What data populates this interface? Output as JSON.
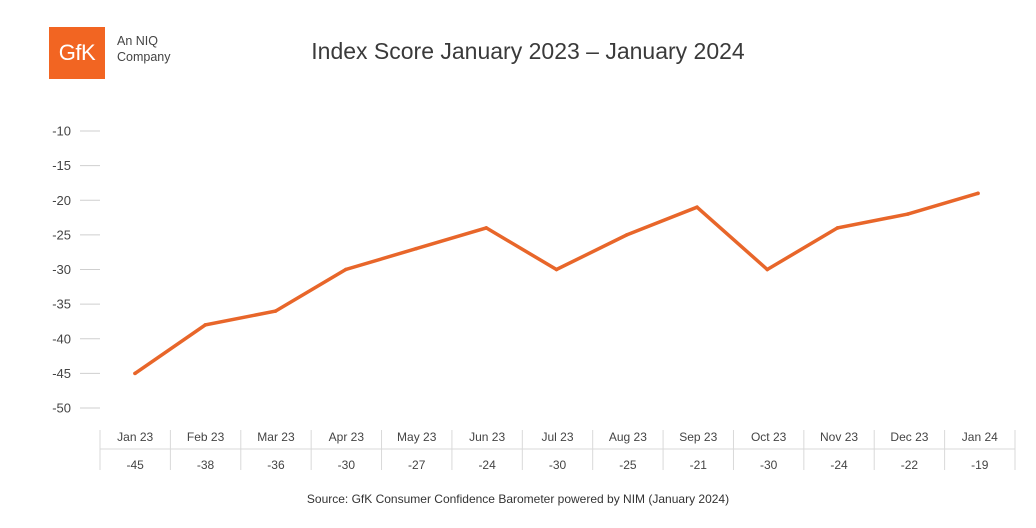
{
  "brand": {
    "logo_text": "GfK",
    "tagline_line1": "An NIQ",
    "tagline_line2": "Company",
    "color": "#f26522"
  },
  "chart_data": {
    "type": "line",
    "title": "Index Score January 2023 – January 2024",
    "categories": [
      "Jan 23",
      "Feb 23",
      "Mar 23",
      "Apr 23",
      "May 23",
      "Jun 23",
      "Jul 23",
      "Aug 23",
      "Sep 23",
      "Oct 23",
      "Nov 23",
      "Dec 23",
      "Jan 24"
    ],
    "values": [
      -45,
      -38,
      -36,
      -30,
      -27,
      -24,
      -30,
      -25,
      -21,
      -30,
      -24,
      -22,
      -19
    ],
    "value_labels": [
      "-45",
      "-38",
      "-36",
      "-30",
      "-27",
      "-24",
      "-30",
      "-25",
      "-21",
      "-30",
      "-24",
      "-22",
      "-19"
    ],
    "ylim": [
      -50,
      -10
    ],
    "yticks": [
      -10,
      -15,
      -20,
      -25,
      -30,
      -35,
      -40,
      -45,
      -50
    ],
    "ytick_labels": [
      "-10",
      "-15",
      "-20",
      "-25",
      "-30",
      "-35",
      "-40",
      "-45",
      "-50"
    ],
    "xlabel": "",
    "ylabel": "",
    "line_color": "#e8662a",
    "grid": false,
    "legend": "none"
  },
  "source": "Source: GfK Consumer Confidence Barometer powered by NIM (January 2024)"
}
